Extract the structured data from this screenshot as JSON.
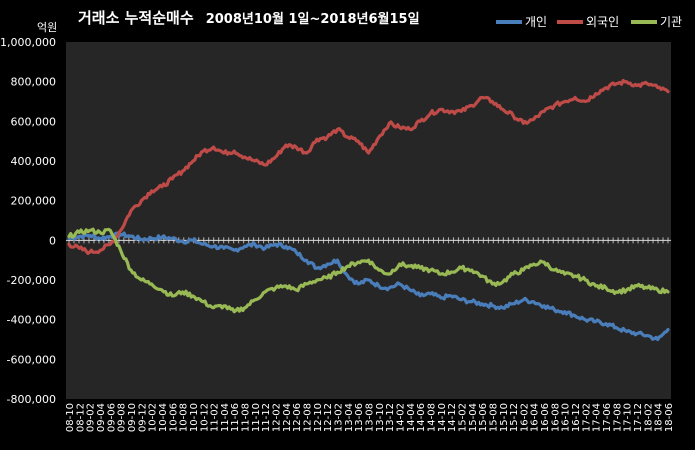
{
  "chart_data": {
    "type": "line",
    "title_main": "거래소 누적순매수",
    "title_range": "2008년10월 1일~2018년6월15일",
    "ylabel": "억원",
    "ylim": [
      -800000,
      1000000
    ],
    "yticks": [
      {
        "value": 1000000,
        "label": "1,000,000"
      },
      {
        "value": 800000,
        "label": "800,000"
      },
      {
        "value": 600000,
        "label": "600,000"
      },
      {
        "value": 400000,
        "label": "400,000"
      },
      {
        "value": 200000,
        "label": "200,000"
      },
      {
        "value": 0,
        "label": "0"
      },
      {
        "value": -200000,
        "label": "-200,000"
      },
      {
        "value": -400000,
        "label": "-400,000"
      },
      {
        "value": -600000,
        "label": "-600,000"
      },
      {
        "value": -800000,
        "label": "-800,000"
      }
    ],
    "xticks": [
      "08-10",
      "08-12",
      "09-02",
      "09-04",
      "09-06",
      "09-08",
      "09-10",
      "09-12",
      "10-02",
      "10-04",
      "10-06",
      "10-08",
      "10-10",
      "10-12",
      "11-02",
      "11-04",
      "11-06",
      "11-08",
      "11-10",
      "11-12",
      "12-02",
      "12-04",
      "12-06",
      "12-08",
      "12-10",
      "12-12",
      "13-02",
      "13-04",
      "13-06",
      "13-08",
      "13-10",
      "13-12",
      "14-02",
      "14-04",
      "14-06",
      "14-08",
      "14-10",
      "14-12",
      "15-02",
      "15-04",
      "15-06",
      "15-08",
      "15-10",
      "15-12",
      "16-02",
      "16-04",
      "16-06",
      "16-08",
      "16-10",
      "16-12",
      "17-02",
      "17-04",
      "17-06",
      "17-08",
      "17-10",
      "17-12",
      "18-02",
      "18-04",
      "18-06"
    ],
    "grid": false,
    "legend_position": "top-right",
    "series": [
      {
        "name": "개인",
        "color": "#4a7ebb",
        "values": [
          10000,
          20000,
          25000,
          10000,
          20000,
          30000,
          20000,
          5000,
          10000,
          15000,
          10000,
          -5000,
          0,
          -20000,
          -30000,
          -40000,
          -50000,
          -30000,
          -20000,
          -40000,
          -20000,
          -30000,
          -60000,
          -100000,
          -140000,
          -120000,
          -100000,
          -180000,
          -220000,
          -200000,
          -230000,
          -240000,
          -220000,
          -250000,
          -280000,
          -270000,
          -290000,
          -280000,
          -300000,
          -310000,
          -320000,
          -330000,
          -340000,
          -320000,
          -300000,
          -310000,
          -330000,
          -350000,
          -360000,
          -380000,
          -400000,
          -410000,
          -420000,
          -440000,
          -460000,
          -470000,
          -480000,
          -500000,
          -450000
        ]
      },
      {
        "name": "외국인",
        "color": "#be4b48",
        "values": [
          -20000,
          -40000,
          -60000,
          -50000,
          -20000,
          50000,
          150000,
          200000,
          250000,
          270000,
          310000,
          350000,
          400000,
          450000,
          470000,
          440000,
          450000,
          420000,
          400000,
          380000,
          420000,
          480000,
          470000,
          440000,
          510000,
          520000,
          560000,
          520000,
          500000,
          440000,
          520000,
          590000,
          570000,
          560000,
          600000,
          640000,
          660000,
          650000,
          650000,
          680000,
          720000,
          700000,
          660000,
          630000,
          590000,
          610000,
          650000,
          680000,
          700000,
          720000,
          700000,
          740000,
          770000,
          790000,
          800000,
          780000,
          790000,
          770000,
          750000
        ]
      },
      {
        "name": "기관",
        "color": "#98b954",
        "values": [
          20000,
          40000,
          50000,
          40000,
          50000,
          -50000,
          -150000,
          -200000,
          -220000,
          -250000,
          -280000,
          -260000,
          -280000,
          -310000,
          -340000,
          -330000,
          -360000,
          -340000,
          -300000,
          -260000,
          -240000,
          -230000,
          -250000,
          -220000,
          -200000,
          -190000,
          -160000,
          -130000,
          -110000,
          -100000,
          -150000,
          -170000,
          -120000,
          -130000,
          -140000,
          -150000,
          -170000,
          -160000,
          -140000,
          -150000,
          -180000,
          -220000,
          -210000,
          -170000,
          -150000,
          -120000,
          -110000,
          -150000,
          -170000,
          -180000,
          -200000,
          -230000,
          -240000,
          -260000,
          -250000,
          -230000,
          -240000,
          -250000,
          -260000
        ]
      }
    ]
  }
}
